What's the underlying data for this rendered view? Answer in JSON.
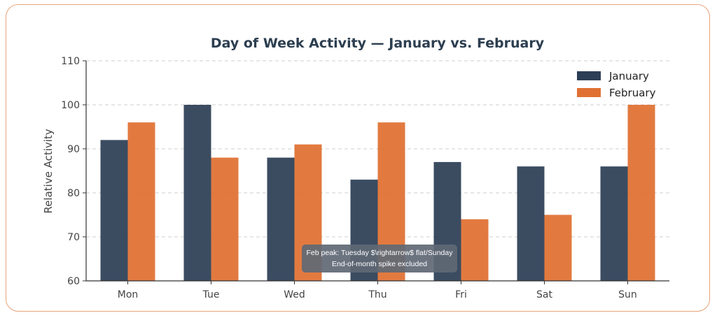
{
  "chart_data": {
    "type": "bar",
    "title": "Day of Week Activity — January vs. February",
    "xlabel": "",
    "ylabel": "Relative Activity",
    "ylim": [
      60,
      110
    ],
    "yticks": [
      60,
      70,
      80,
      90,
      100,
      110
    ],
    "categories": [
      "Mon",
      "Tue",
      "Wed",
      "Thu",
      "Fri",
      "Sat",
      "Sun"
    ],
    "series": [
      {
        "name": "January",
        "color": "#2c3e55",
        "values": [
          92,
          100,
          88,
          83,
          87,
          86,
          86
        ]
      },
      {
        "name": "February",
        "color": "#e07032",
        "values": [
          96,
          88,
          91,
          96,
          74,
          75,
          100
        ]
      }
    ],
    "grid": "y-dashed",
    "legend": "top-right",
    "annotation": {
      "lines": [
        "Feb peak: Tuesday $\\rightarrow$ flat/Sunday",
        "End-of-month spike excluded"
      ]
    }
  }
}
